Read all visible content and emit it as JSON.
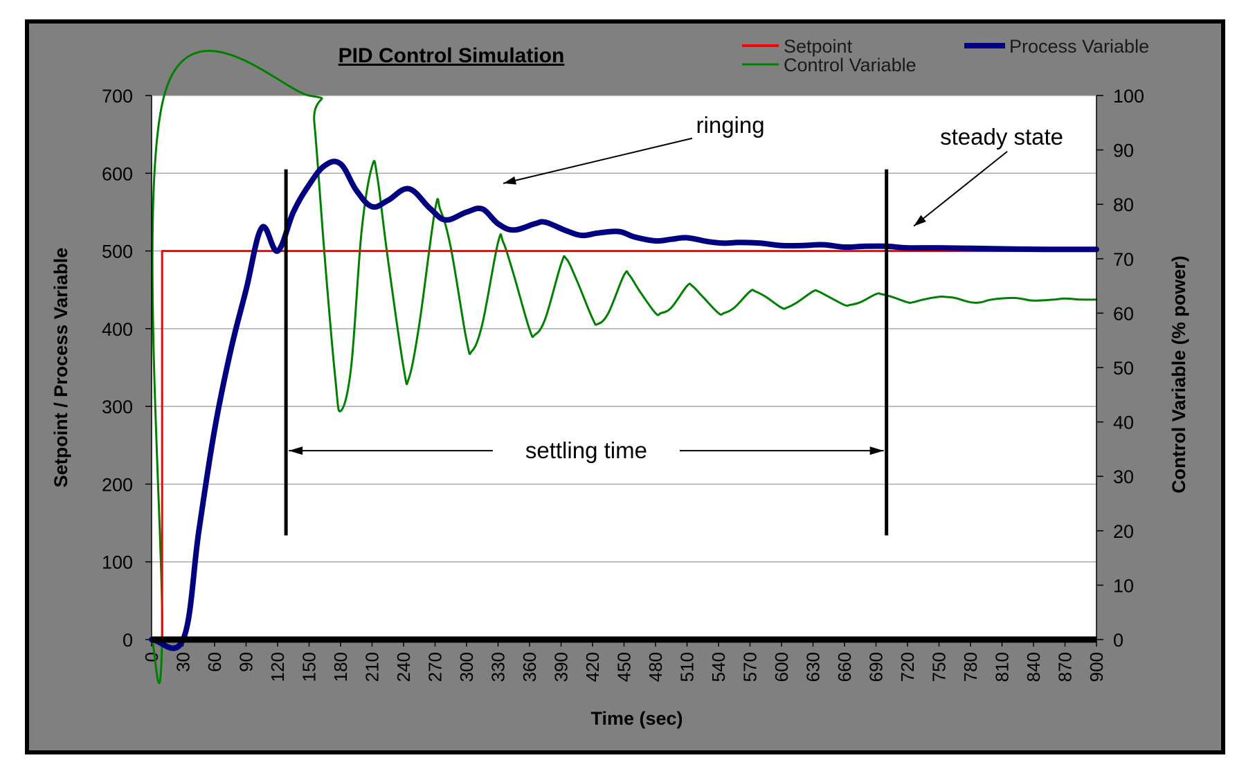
{
  "chart_data": {
    "type": "line",
    "title": "PID Control Simulation",
    "xlabel": "Time (sec)",
    "ylabel": "Setpoint / Process Variable",
    "y2label": "Control Variable (% power)",
    "xlim": [
      0,
      900
    ],
    "ylim": [
      0,
      700
    ],
    "y2lim": [
      0,
      100
    ],
    "x_ticks": [
      0,
      30,
      60,
      90,
      120,
      150,
      180,
      210,
      240,
      270,
      300,
      330,
      360,
      390,
      420,
      450,
      480,
      510,
      540,
      570,
      600,
      630,
      660,
      690,
      720,
      750,
      780,
      810,
      840,
      870,
      900
    ],
    "y_ticks": [
      0,
      100,
      200,
      300,
      400,
      500,
      600,
      700
    ],
    "y2_ticks": [
      0,
      10,
      20,
      30,
      40,
      50,
      60,
      70,
      80,
      90,
      100
    ],
    "grid": true,
    "legend_position": "top-right",
    "series": [
      {
        "name": "Setpoint",
        "axis": "left",
        "color": "#ff0000",
        "x": [
          0,
          10,
          10,
          900
        ],
        "y": [
          0,
          0,
          500,
          500
        ]
      },
      {
        "name": "Process Variable",
        "axis": "left",
        "color": "#000080",
        "x": [
          0,
          30,
          45,
          60,
          75,
          90,
          105,
          120,
          135,
          150,
          165,
          180,
          195,
          210,
          225,
          245,
          265,
          280,
          300,
          315,
          330,
          345,
          365,
          375,
          395,
          410,
          425,
          445,
          460,
          480,
          495,
          510,
          530,
          545,
          560,
          580,
          600,
          620,
          640,
          660,
          680,
          700,
          720,
          750,
          800,
          850,
          900
        ],
        "y": [
          0,
          0,
          140,
          270,
          370,
          450,
          530,
          500,
          550,
          585,
          610,
          612,
          578,
          557,
          565,
          580,
          555,
          540,
          550,
          554,
          535,
          527,
          535,
          537,
          526,
          520,
          523,
          525,
          518,
          513,
          515,
          517,
          512,
          510,
          511,
          510,
          507,
          507,
          508,
          505,
          506,
          506,
          504,
          504,
          503,
          502,
          502
        ]
      },
      {
        "name": "Control Variable",
        "axis": "right",
        "color": "#008000",
        "x": [
          0,
          10,
          12,
          150,
          155,
          165,
          175,
          180,
          190,
          200,
          210,
          215,
          225,
          240,
          245,
          255,
          270,
          275,
          285,
          300,
          305,
          315,
          330,
          335,
          345,
          360,
          365,
          375,
          390,
          395,
          405,
          420,
          425,
          435,
          450,
          455,
          465,
          480,
          485,
          495,
          510,
          515,
          525,
          540,
          545,
          555,
          570,
          575,
          585,
          600,
          605,
          615,
          630,
          635,
          645,
          660,
          665,
          675,
          690,
          695,
          705,
          720,
          725,
          735,
          750,
          755,
          765,
          780,
          790,
          800,
          820,
          830,
          840,
          860,
          870,
          885,
          900
        ],
        "y": [
          0,
          0,
          100,
          100,
          95,
          70,
          48,
          42,
          50,
          75,
          87,
          85,
          70,
          50,
          48,
          58,
          79,
          79,
          72,
          55,
          53,
          58,
          73,
          73,
          67,
          57,
          56,
          59,
          69,
          70,
          66,
          59,
          58,
          60,
          67,
          67,
          64,
          60,
          60,
          61,
          65,
          65,
          63,
          60,
          60,
          61,
          64,
          64,
          63,
          61,
          61,
          62,
          64,
          64,
          63,
          61.5,
          61.5,
          62,
          63.5,
          63.5,
          63,
          62,
          62,
          62.5,
          63,
          63,
          62.8,
          62,
          62,
          62.5,
          62.8,
          62.6,
          62.3,
          62.5,
          62.7,
          62.5,
          62.5
        ]
      }
    ],
    "annotations": [
      {
        "text": "ringing",
        "arrow_from": [
          515,
          645
        ],
        "arrow_to": [
          335,
          587
        ]
      },
      {
        "text": "steady state",
        "arrow_from": [
          815,
          628
        ],
        "arrow_to": [
          726,
          532
        ]
      },
      {
        "text": "settling time",
        "span": [
          128,
          700
        ],
        "y": 243
      }
    ],
    "markers": [
      {
        "x": 128,
        "y_from": 134,
        "y_to": 605
      },
      {
        "x": 700,
        "y_from": 134,
        "y_to": 605
      }
    ]
  }
}
